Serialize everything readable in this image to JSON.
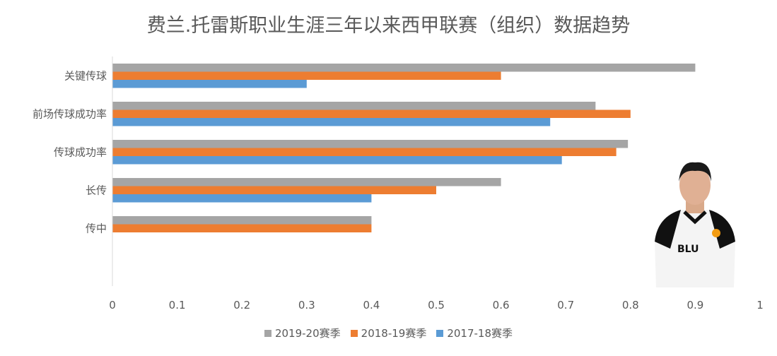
{
  "chart_data": {
    "type": "bar",
    "orientation": "horizontal",
    "title": "费兰.托雷斯职业生涯三年以来西甲联赛（组织）数据趋势",
    "categories": [
      "关键传球",
      "前场传球成功率",
      "传球成功率",
      "长传",
      "传中"
    ],
    "series": [
      {
        "name": "2019-20赛季",
        "color": "#a5a5a5",
        "values": [
          0.9,
          0.746,
          0.796,
          0.6,
          0.4
        ]
      },
      {
        "name": "2018-19赛季",
        "color": "#ed7d31",
        "values": [
          0.6,
          0.8,
          0.778,
          0.5,
          0.4
        ]
      },
      {
        "name": "2017-18赛季",
        "color": "#5b9bd5",
        "values": [
          0.3,
          0.676,
          0.694,
          0.4,
          0
        ]
      }
    ],
    "xlim": [
      0,
      1
    ],
    "xticks": [
      "0",
      "0.1",
      "0.2",
      "0.3",
      "0.4",
      "0.5",
      "0.6",
      "0.7",
      "0.8",
      "0.9",
      "1"
    ],
    "grid": false,
    "legend_position": "bottom"
  }
}
